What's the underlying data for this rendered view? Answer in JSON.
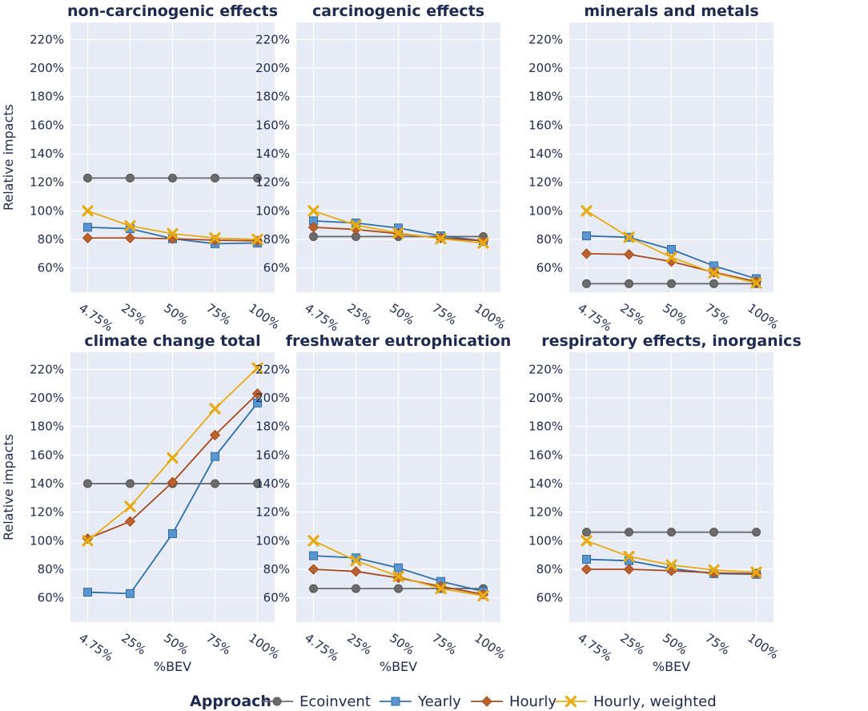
{
  "chart_data": {
    "type": "line",
    "x_title": "%BEV",
    "y_title": "Relative impacts",
    "categories": [
      "4.75%",
      "25%",
      "50%",
      "75%",
      "100%"
    ],
    "y_ticks": [
      60,
      80,
      100,
      120,
      140,
      160,
      180,
      200,
      220
    ],
    "y_tick_labels": [
      "60%",
      "80%",
      "100%",
      "120%",
      "140%",
      "160%",
      "180%",
      "200%",
      "220%"
    ],
    "ylim": [
      43,
      232
    ],
    "legend": {
      "title": "Approach",
      "placement": "bottom-center",
      "entries": [
        "Ecoinvent",
        "Yearly",
        "Hourly",
        "Hourly, weighted"
      ]
    },
    "series_style": [
      {
        "name": "Ecoinvent",
        "color": "#6b6b6b",
        "marker": "circle"
      },
      {
        "name": "Yearly",
        "color": "#2e6fa7",
        "marker": "square"
      },
      {
        "name": "Hourly",
        "color": "#a84a1d",
        "marker": "diamond"
      },
      {
        "name": "Hourly, weighted",
        "color": "#e6ab12",
        "marker": "x"
      }
    ],
    "panels": [
      {
        "title": "non-carcinogenic effects",
        "series": [
          {
            "name": "Ecoinvent",
            "values": [
              123,
              123,
              123,
              123,
              123
            ]
          },
          {
            "name": "Yearly",
            "values": [
              88.5,
              87.5,
              80.5,
              77,
              77.5
            ]
          },
          {
            "name": "Hourly",
            "values": [
              81,
              81,
              80.5,
              79.5,
              79
            ]
          },
          {
            "name": "Hourly, weighted",
            "values": [
              100,
              89.5,
              84,
              81,
              80
            ]
          }
        ]
      },
      {
        "title": "carcinogenic effects",
        "series": [
          {
            "name": "Ecoinvent",
            "values": [
              82,
              82,
              82,
              82,
              82
            ]
          },
          {
            "name": "Yearly",
            "values": [
              93,
              91.5,
              88,
              82.5,
              79
            ]
          },
          {
            "name": "Hourly",
            "values": [
              88.5,
              87,
              84,
              81,
              79
            ]
          },
          {
            "name": "Hourly, weighted",
            "values": [
              100,
              90,
              84.5,
              80.5,
              77.5
            ]
          }
        ]
      },
      {
        "title": "minerals and metals",
        "series": [
          {
            "name": "Ecoinvent",
            "values": [
              49,
              49,
              49,
              49,
              49
            ]
          },
          {
            "name": "Yearly",
            "values": [
              82.5,
              81.5,
              73,
              61.5,
              52.5
            ]
          },
          {
            "name": "Hourly",
            "values": [
              70,
              69.5,
              64.5,
              57,
              50.5
            ]
          },
          {
            "name": "Hourly, weighted",
            "values": [
              100,
              81.5,
              67.5,
              56.5,
              49.5
            ]
          }
        ]
      },
      {
        "title": "climate change total",
        "series": [
          {
            "name": "Ecoinvent",
            "values": [
              140,
              140,
              140,
              140,
              140
            ]
          },
          {
            "name": "Yearly",
            "values": [
              64,
              63,
              105,
              159,
              196.5
            ]
          },
          {
            "name": "Hourly",
            "values": [
              101.5,
              113.5,
              141,
              174,
              203
            ]
          },
          {
            "name": "Hourly, weighted",
            "values": [
              100,
              124,
              158,
              192.5,
              221
            ]
          }
        ]
      },
      {
        "title": "freshwater eutrophication",
        "series": [
          {
            "name": "Ecoinvent",
            "values": [
              66.5,
              66.5,
              66.5,
              66.5,
              66.5
            ]
          },
          {
            "name": "Yearly",
            "values": [
              89.5,
              88,
              81,
              71.5,
              64.5
            ]
          },
          {
            "name": "Hourly",
            "values": [
              80,
              78.5,
              74,
              68,
              62.5
            ]
          },
          {
            "name": "Hourly, weighted",
            "values": [
              100,
              86,
              75,
              66.5,
              61.5
            ]
          }
        ]
      },
      {
        "title": "respiratory effects, inorganics",
        "series": [
          {
            "name": "Ecoinvent",
            "values": [
              106,
              106,
              106,
              106,
              106
            ]
          },
          {
            "name": "Yearly",
            "values": [
              87,
              86,
              80.5,
              77,
              76.5
            ]
          },
          {
            "name": "Hourly",
            "values": [
              80,
              80,
              79,
              77.5,
              77
            ]
          },
          {
            "name": "Hourly, weighted",
            "values": [
              100,
              89,
              83,
              79.5,
              78
            ]
          }
        ]
      }
    ]
  }
}
